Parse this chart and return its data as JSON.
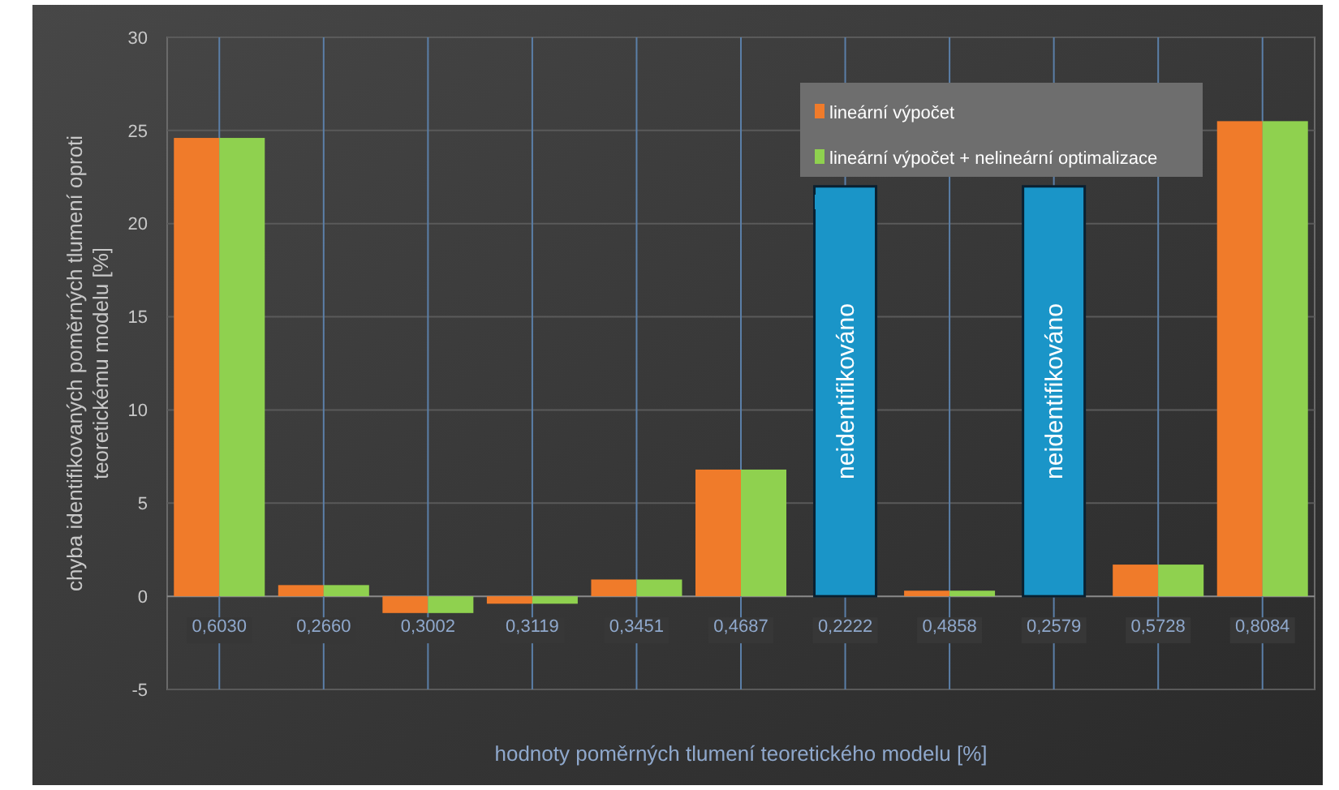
{
  "chart_data": {
    "type": "bar",
    "xlabel": "hodnoty poměrných tlumení teoretického modelu [%]",
    "ylabel": "chyba identifikovaných poměrných tlumení oproti teoretickému modelu [%]",
    "categories": [
      "0,6030",
      "0,2660",
      "0,3002",
      "0,3119",
      "0,3451",
      "0,4687",
      "0,2222",
      "0,4858",
      "0,2579",
      "0,5728",
      "0,8084"
    ],
    "series": [
      {
        "name": "lineární výpočet",
        "color": "#f07b2a",
        "values": [
          24.6,
          0.6,
          -0.9,
          -0.4,
          0.9,
          6.8,
          null,
          0.3,
          null,
          1.7,
          25.5
        ]
      },
      {
        "name": "lineární výpočet + nelineární optimalizace",
        "color": "#8fd14f",
        "values": [
          24.6,
          0.6,
          -0.9,
          -0.4,
          0.9,
          6.8,
          null,
          0.3,
          null,
          1.7,
          25.5
        ]
      },
      {
        "color": "#1a95c8",
        "values": [
          null,
          null,
          null,
          null,
          null,
          null,
          22,
          null,
          22,
          null,
          null
        ]
      }
    ],
    "ylim": [
      -5,
      30
    ],
    "yticks": [
      -5,
      0,
      5,
      10,
      15,
      20,
      25,
      30
    ],
    "grid": true,
    "legend": "top right",
    "annotations": [
      "neidentifikováno",
      "neidentifikováno"
    ]
  }
}
